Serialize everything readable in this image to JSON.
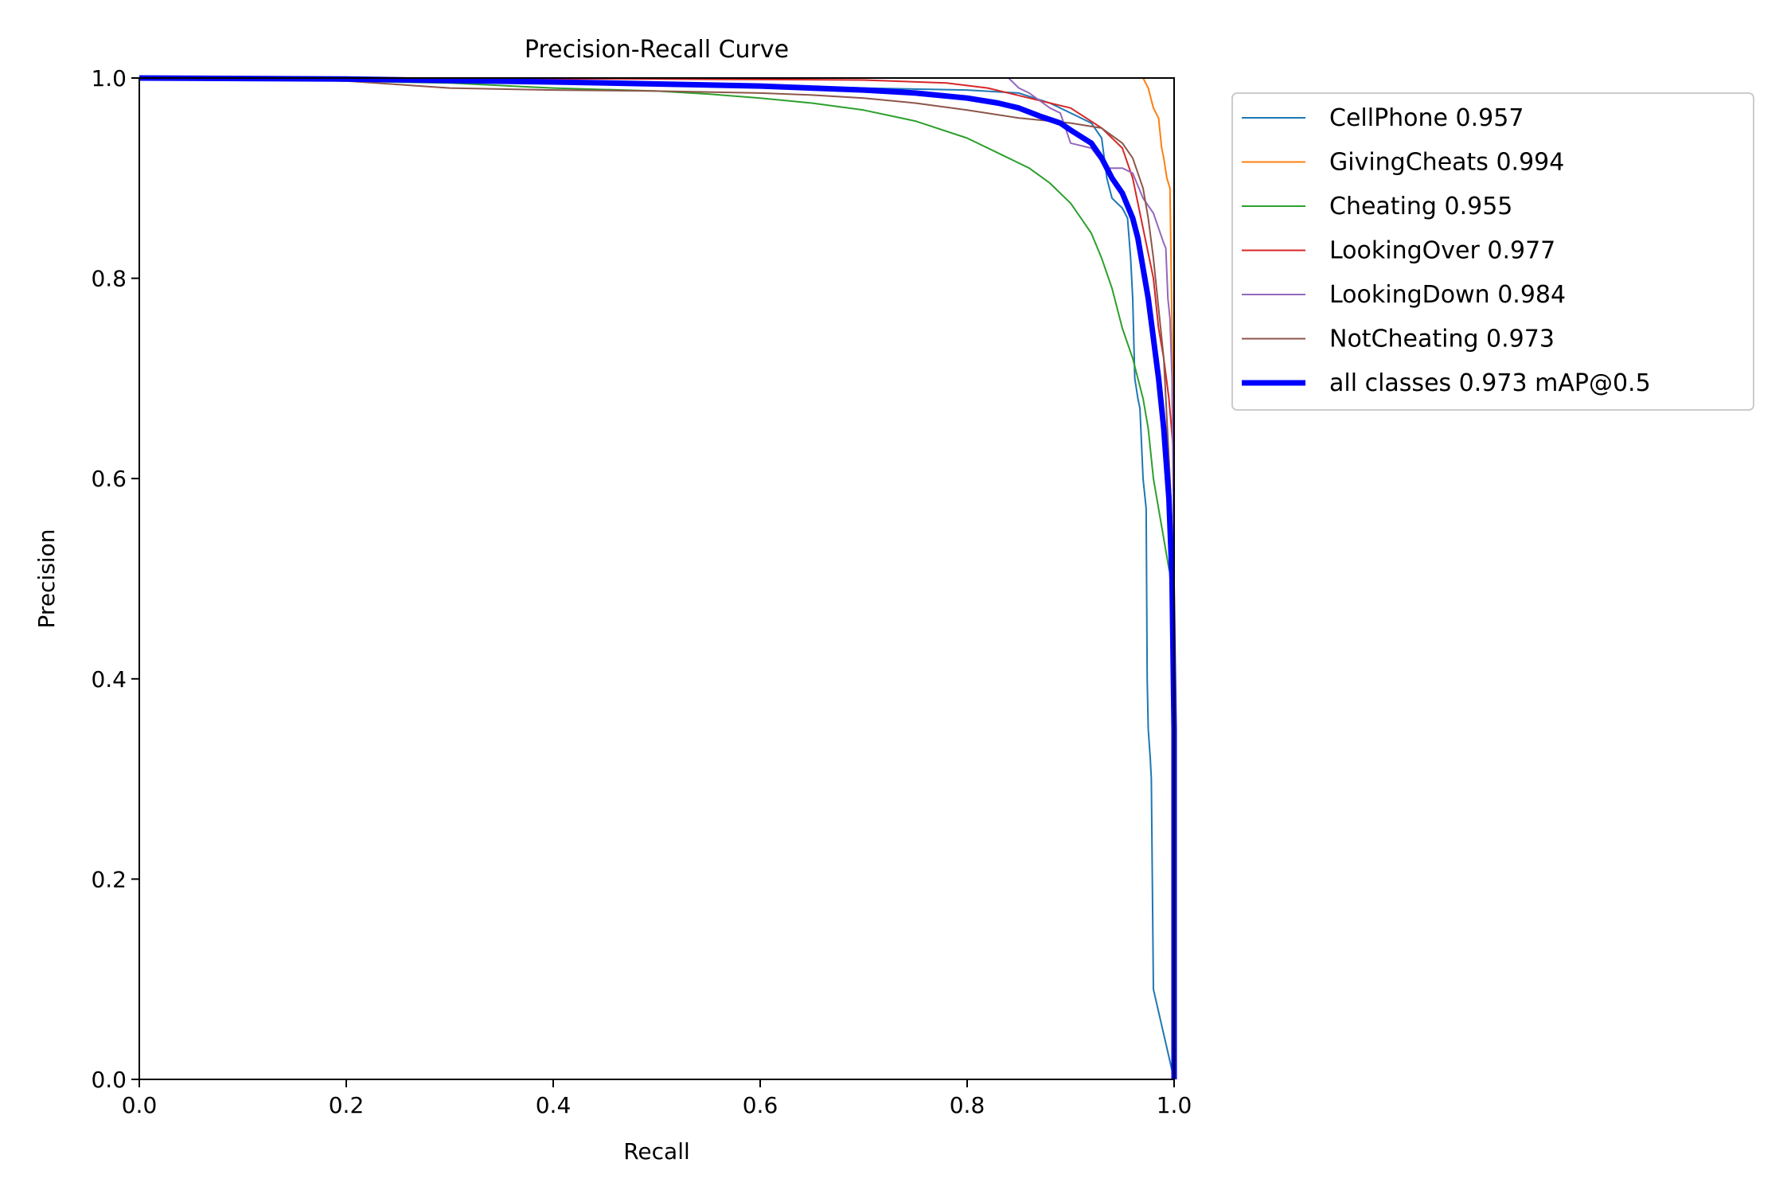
{
  "chart_data": {
    "type": "line",
    "title": "Precision-Recall Curve",
    "xlabel": "Recall",
    "ylabel": "Precision",
    "xlim": [
      0,
      1
    ],
    "ylim": [
      0,
      1
    ],
    "x_ticks": [
      "0.0",
      "0.2",
      "0.4",
      "0.6",
      "0.8",
      "1.0"
    ],
    "y_ticks": [
      "0.0",
      "0.2",
      "0.4",
      "0.6",
      "0.8",
      "1.0"
    ],
    "grid": false,
    "legend_position": "outside-top-right",
    "series": [
      {
        "name": "CellPhone 0.957",
        "color": "#1f77b4",
        "width": "thin",
        "points": [
          [
            0,
            1.0
          ],
          [
            0.3,
            0.999
          ],
          [
            0.5,
            0.995
          ],
          [
            0.6,
            0.993
          ],
          [
            0.7,
            0.99
          ],
          [
            0.8,
            0.988
          ],
          [
            0.85,
            0.985
          ],
          [
            0.88,
            0.975
          ],
          [
            0.9,
            0.965
          ],
          [
            0.92,
            0.955
          ],
          [
            0.93,
            0.94
          ],
          [
            0.935,
            0.9
          ],
          [
            0.94,
            0.88
          ],
          [
            0.95,
            0.87
          ],
          [
            0.955,
            0.86
          ],
          [
            0.958,
            0.82
          ],
          [
            0.96,
            0.78
          ],
          [
            0.962,
            0.7
          ],
          [
            0.965,
            0.68
          ],
          [
            0.967,
            0.67
          ],
          [
            0.97,
            0.6
          ],
          [
            0.972,
            0.58
          ],
          [
            0.973,
            0.57
          ],
          [
            0.974,
            0.4
          ],
          [
            0.975,
            0.35
          ],
          [
            0.977,
            0.32
          ],
          [
            0.978,
            0.3
          ],
          [
            0.98,
            0.09
          ],
          [
            1.0,
            0.0
          ]
        ]
      },
      {
        "name": "GivingCheats 0.994",
        "color": "#ff7f0e",
        "width": "thin",
        "points": [
          [
            0,
            1.0
          ],
          [
            0.97,
            1.0
          ],
          [
            0.975,
            0.99
          ],
          [
            0.98,
            0.97
          ],
          [
            0.985,
            0.96
          ],
          [
            0.988,
            0.93
          ],
          [
            0.99,
            0.92
          ],
          [
            0.993,
            0.9
          ],
          [
            0.996,
            0.89
          ],
          [
            0.998,
            0.75
          ],
          [
            1.0,
            0.6
          ],
          [
            1.0,
            0.0
          ]
        ]
      },
      {
        "name": "Cheating 0.955",
        "color": "#2ca02c",
        "width": "thin",
        "points": [
          [
            0,
            1.0
          ],
          [
            0.1,
            0.999
          ],
          [
            0.2,
            0.997
          ],
          [
            0.3,
            0.995
          ],
          [
            0.4,
            0.99
          ],
          [
            0.5,
            0.987
          ],
          [
            0.55,
            0.984
          ],
          [
            0.6,
            0.98
          ],
          [
            0.65,
            0.975
          ],
          [
            0.7,
            0.968
          ],
          [
            0.75,
            0.957
          ],
          [
            0.8,
            0.94
          ],
          [
            0.83,
            0.925
          ],
          [
            0.86,
            0.91
          ],
          [
            0.88,
            0.895
          ],
          [
            0.9,
            0.875
          ],
          [
            0.91,
            0.86
          ],
          [
            0.92,
            0.845
          ],
          [
            0.93,
            0.82
          ],
          [
            0.94,
            0.79
          ],
          [
            0.95,
            0.75
          ],
          [
            0.96,
            0.72
          ],
          [
            0.97,
            0.68
          ],
          [
            0.975,
            0.65
          ],
          [
            0.98,
            0.6
          ],
          [
            0.985,
            0.57
          ],
          [
            0.99,
            0.54
          ],
          [
            0.995,
            0.51
          ],
          [
            1.0,
            0.49
          ],
          [
            1.0,
            0.0
          ]
        ]
      },
      {
        "name": "LookingOver 0.977",
        "color": "#d62728",
        "width": "thin",
        "points": [
          [
            0,
            1.0
          ],
          [
            0.5,
            0.999
          ],
          [
            0.7,
            0.998
          ],
          [
            0.78,
            0.995
          ],
          [
            0.82,
            0.99
          ],
          [
            0.86,
            0.98
          ],
          [
            0.9,
            0.97
          ],
          [
            0.93,
            0.95
          ],
          [
            0.95,
            0.93
          ],
          [
            0.96,
            0.9
          ],
          [
            0.97,
            0.85
          ],
          [
            0.98,
            0.8
          ],
          [
            0.985,
            0.75
          ],
          [
            0.99,
            0.72
          ],
          [
            0.995,
            0.68
          ],
          [
            1.0,
            0.62
          ],
          [
            1.0,
            0.0
          ]
        ]
      },
      {
        "name": "LookingDown 0.984",
        "color": "#9467bd",
        "width": "thin",
        "points": [
          [
            0,
            1.0
          ],
          [
            0.84,
            1.0
          ],
          [
            0.85,
            0.99
          ],
          [
            0.86,
            0.985
          ],
          [
            0.88,
            0.97
          ],
          [
            0.89,
            0.965
          ],
          [
            0.9,
            0.935
          ],
          [
            0.92,
            0.93
          ],
          [
            0.935,
            0.91
          ],
          [
            0.95,
            0.91
          ],
          [
            0.96,
            0.905
          ],
          [
            0.97,
            0.88
          ],
          [
            0.98,
            0.865
          ],
          [
            0.985,
            0.85
          ],
          [
            0.99,
            0.835
          ],
          [
            0.992,
            0.83
          ],
          [
            0.994,
            0.78
          ],
          [
            0.996,
            0.76
          ],
          [
            0.998,
            0.7
          ],
          [
            1.0,
            0.5
          ],
          [
            1.0,
            0.0
          ]
        ]
      },
      {
        "name": "NotCheating 0.973",
        "color": "#8c564b",
        "width": "thin",
        "points": [
          [
            0,
            1.0
          ],
          [
            0.2,
            0.997
          ],
          [
            0.3,
            0.99
          ],
          [
            0.4,
            0.988
          ],
          [
            0.5,
            0.987
          ],
          [
            0.6,
            0.985
          ],
          [
            0.65,
            0.983
          ],
          [
            0.7,
            0.98
          ],
          [
            0.75,
            0.975
          ],
          [
            0.8,
            0.968
          ],
          [
            0.85,
            0.96
          ],
          [
            0.9,
            0.955
          ],
          [
            0.93,
            0.95
          ],
          [
            0.95,
            0.935
          ],
          [
            0.96,
            0.92
          ],
          [
            0.97,
            0.89
          ],
          [
            0.975,
            0.86
          ],
          [
            0.98,
            0.82
          ],
          [
            0.985,
            0.77
          ],
          [
            0.99,
            0.72
          ],
          [
            0.993,
            0.66
          ],
          [
            0.996,
            0.6
          ],
          [
            1.0,
            0.5
          ],
          [
            1.0,
            0.0
          ]
        ]
      },
      {
        "name": "all classes 0.973 mAP@0.5",
        "color": "#0000ff",
        "width": "thick",
        "points": [
          [
            0,
            1.0
          ],
          [
            0.2,
            0.999
          ],
          [
            0.4,
            0.996
          ],
          [
            0.5,
            0.994
          ],
          [
            0.6,
            0.992
          ],
          [
            0.7,
            0.988
          ],
          [
            0.75,
            0.985
          ],
          [
            0.8,
            0.98
          ],
          [
            0.83,
            0.975
          ],
          [
            0.85,
            0.97
          ],
          [
            0.87,
            0.962
          ],
          [
            0.89,
            0.955
          ],
          [
            0.9,
            0.948
          ],
          [
            0.92,
            0.935
          ],
          [
            0.93,
            0.92
          ],
          [
            0.94,
            0.9
          ],
          [
            0.95,
            0.885
          ],
          [
            0.96,
            0.86
          ],
          [
            0.965,
            0.84
          ],
          [
            0.97,
            0.81
          ],
          [
            0.975,
            0.78
          ],
          [
            0.98,
            0.74
          ],
          [
            0.985,
            0.7
          ],
          [
            0.99,
            0.65
          ],
          [
            0.995,
            0.58
          ],
          [
            0.998,
            0.5
          ],
          [
            1.0,
            0.35
          ],
          [
            1.0,
            0.0
          ]
        ]
      }
    ]
  }
}
